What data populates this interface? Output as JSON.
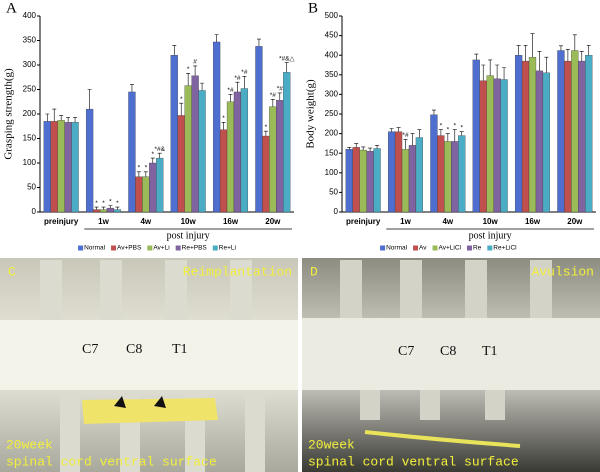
{
  "chart_data": [
    {
      "type": "bar",
      "label": "A",
      "ylabel": "Grasping strength(g)",
      "xlabel": "post injury",
      "categories": [
        "preinjury",
        "1w",
        "4w",
        "10w",
        "16w",
        "20w"
      ],
      "ylim": [
        0,
        400
      ],
      "yticks": [
        0,
        50,
        100,
        150,
        200,
        250,
        300,
        350,
        400
      ],
      "legend": "bottom",
      "series": [
        {
          "name": "Normal",
          "color": "#4f6fd0",
          "values": [
            185,
            210,
            245,
            320,
            347,
            338
          ],
          "errors": [
            15,
            40,
            15,
            20,
            15,
            15
          ],
          "significance": [
            null,
            null,
            null,
            null,
            null,
            null
          ]
        },
        {
          "name": "Av+PBS",
          "color": "#c0504d",
          "values": [
            185,
            5,
            72,
            197,
            168,
            155
          ],
          "errors": [
            25,
            5,
            10,
            25,
            15,
            10
          ],
          "significance": [
            null,
            "*",
            "*",
            "*",
            "*",
            "*"
          ]
        },
        {
          "name": "Av+Li",
          "color": "#9bbb59",
          "values": [
            187,
            5,
            72,
            258,
            225,
            215
          ],
          "errors": [
            10,
            5,
            10,
            25,
            15,
            15
          ],
          "significance": [
            null,
            "*",
            "*",
            "*",
            "*#",
            "*#"
          ]
        },
        {
          "name": "Re+PBS",
          "color": "#8064a2",
          "values": [
            183,
            8,
            100,
            278,
            245,
            228
          ],
          "errors": [
            10,
            5,
            10,
            20,
            20,
            15
          ],
          "significance": [
            null,
            "*",
            "*",
            "#",
            "*#",
            "*#"
          ]
        },
        {
          "name": "Re+Li",
          "color": "#4bacc6",
          "values": [
            183,
            5,
            110,
            248,
            252,
            285
          ],
          "errors": [
            10,
            5,
            10,
            15,
            25,
            20
          ],
          "significance": [
            null,
            "*",
            "*#&",
            null,
            "*#",
            "*#&△"
          ]
        }
      ]
    },
    {
      "type": "bar",
      "label": "B",
      "ylabel": "Body weight(g)",
      "xlabel": "post injury",
      "categories": [
        "preinjury",
        "1w",
        "4w",
        "10w",
        "16w",
        "20w"
      ],
      "ylim": [
        0,
        500
      ],
      "yticks": [
        0,
        50,
        100,
        150,
        200,
        250,
        300,
        350,
        400,
        450,
        500
      ],
      "legend": "bottom",
      "series": [
        {
          "name": "Normal",
          "color": "#4f6fd0",
          "values": [
            160,
            205,
            248,
            388,
            400,
            412
          ],
          "errors": [
            5,
            8,
            12,
            15,
            25,
            12
          ],
          "significance": [
            null,
            null,
            null,
            null,
            null,
            null
          ]
        },
        {
          "name": "Av",
          "color": "#c0504d",
          "values": [
            165,
            205,
            195,
            335,
            385,
            385
          ],
          "errors": [
            10,
            10,
            15,
            40,
            40,
            30
          ],
          "significance": [
            null,
            null,
            "*",
            null,
            null,
            null
          ]
        },
        {
          "name": "Av+LiCl",
          "color": "#9bbb59",
          "values": [
            158,
            160,
            180,
            348,
            395,
            412
          ],
          "errors": [
            8,
            25,
            20,
            40,
            60,
            40
          ],
          "significance": [
            null,
            "*#",
            "*",
            null,
            null,
            null
          ]
        },
        {
          "name": "Re",
          "color": "#8064a2",
          "values": [
            155,
            170,
            180,
            340,
            360,
            385
          ],
          "errors": [
            8,
            30,
            30,
            35,
            50,
            25
          ],
          "significance": [
            null,
            null,
            "*",
            null,
            null,
            null
          ]
        },
        {
          "name": "Re+LiCl",
          "color": "#4bacc6",
          "values": [
            162,
            190,
            195,
            338,
            355,
            400
          ],
          "errors": [
            8,
            20,
            10,
            30,
            40,
            25
          ],
          "significance": [
            null,
            null,
            "*",
            null,
            null,
            null
          ]
        }
      ]
    }
  ],
  "photos": [
    {
      "panel": "C",
      "title": "Reimplantation",
      "levels": [
        "C7",
        "C8",
        "T1"
      ],
      "caption": [
        "20week",
        "spinal cord ventral surface"
      ]
    },
    {
      "panel": "D",
      "title": "Avulsion",
      "levels": [
        "C7",
        "C8",
        "T1"
      ],
      "caption": [
        "20week",
        "spinal cord ventral surface"
      ]
    }
  ]
}
